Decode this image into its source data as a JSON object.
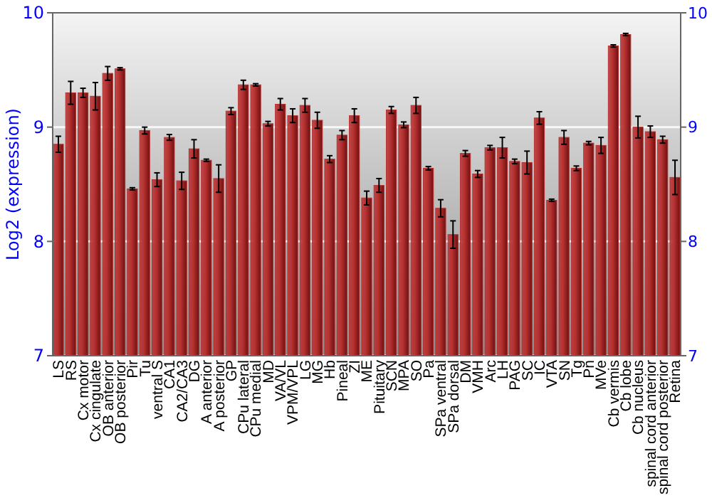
{
  "chart_data": {
    "type": "bar",
    "ylabel": "Log2 (expression)",
    "categories": [
      "LS",
      "RS",
      "Cx motor",
      "Cx cingulate",
      "OB anterior",
      "OB posterior",
      "Pir",
      "Tu",
      "ventral S",
      "CA1",
      "CA2/CA3",
      "DG",
      "A anterior",
      "A posterior",
      "GP",
      "CPu lateral",
      "CPu medial",
      "MD",
      "VA/VL",
      "VPM/VPL",
      "LG",
      "MG",
      "Hb",
      "Pineal",
      "ZI",
      "ME",
      "Pituitary",
      "SCN",
      "MPA",
      "SO",
      "Pa",
      "SPa ventral",
      "SPa dorsal",
      "DM",
      "VMH",
      "Arc",
      "LH",
      "PAG",
      "SC",
      "IC",
      "VTA",
      "SN",
      "Tg",
      "Pn",
      "MVe",
      "Cb vermis",
      "Cb lobe",
      "Cb nucleus",
      "spinal cord anterior",
      "spinal cord posterior",
      "Retina"
    ],
    "values": [
      8.85,
      9.3,
      9.3,
      9.27,
      9.47,
      9.51,
      8.46,
      8.97,
      8.54,
      8.91,
      8.53,
      8.81,
      8.71,
      8.55,
      9.14,
      9.37,
      9.37,
      9.03,
      9.2,
      9.1,
      9.19,
      9.06,
      8.72,
      8.93,
      9.1,
      8.38,
      8.49,
      9.15,
      9.02,
      9.19,
      8.64,
      8.29,
      8.06,
      8.77,
      8.59,
      8.82,
      8.82,
      8.7,
      8.69,
      9.08,
      8.36,
      8.91,
      8.64,
      8.86,
      8.84,
      9.71,
      9.81,
      9.0,
      8.96,
      8.89,
      8.56
    ],
    "errors": [
      0.07,
      0.1,
      0.04,
      0.12,
      0.06,
      0.01,
      0.01,
      0.03,
      0.06,
      0.025,
      0.075,
      0.08,
      0.01,
      0.12,
      0.03,
      0.04,
      0.01,
      0.02,
      0.05,
      0.06,
      0.06,
      0.07,
      0.03,
      0.04,
      0.06,
      0.06,
      0.06,
      0.03,
      0.025,
      0.07,
      0.015,
      0.075,
      0.12,
      0.025,
      0.03,
      0.02,
      0.09,
      0.02,
      0.1,
      0.055,
      0.01,
      0.06,
      0.02,
      0.015,
      0.07,
      0.01,
      0.01,
      0.095,
      0.05,
      0.03,
      0.15
    ],
    "color": "#b83232",
    "ylim": [
      7,
      10
    ],
    "yticks": [
      7,
      8,
      9,
      10
    ],
    "y2lim": [
      7,
      10
    ],
    "y2ticks": [
      7,
      8,
      9,
      10
    ],
    "grid": "y"
  }
}
